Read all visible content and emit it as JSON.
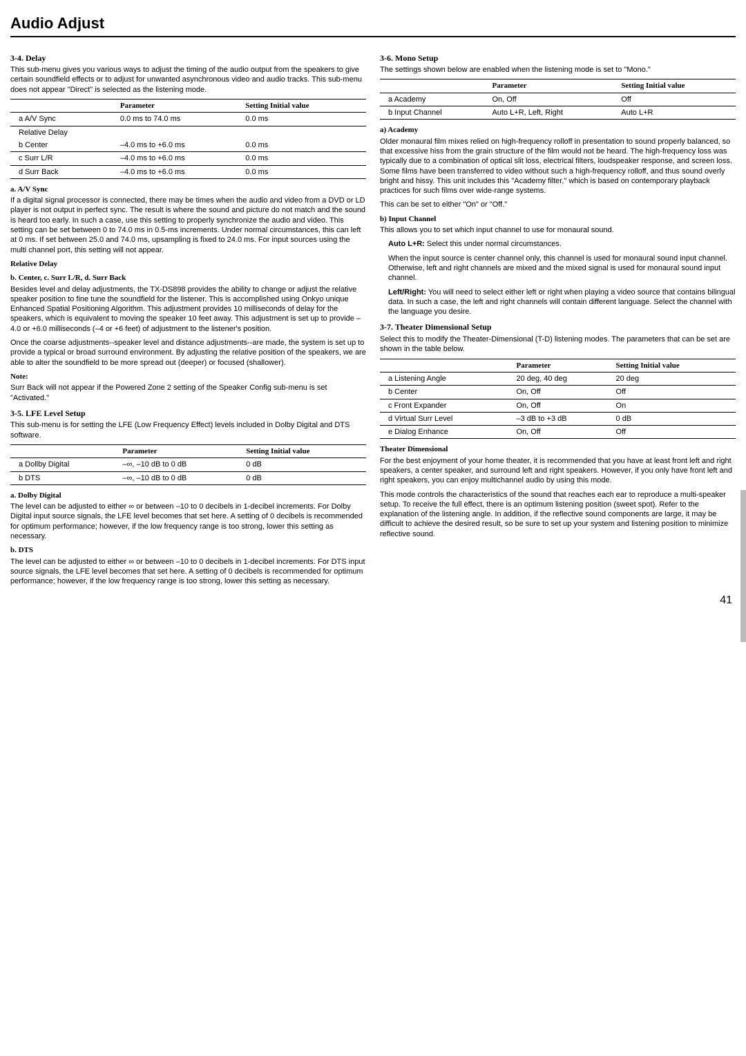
{
  "title": "Audio Adjust",
  "pageNumber": "41",
  "s34": {
    "heading": "3-4. Delay",
    "intro": "This sub-menu gives you various ways to adjust the timing of the audio output from the speakers to give certain soundfield effects or to adjust for unwanted asynchronous video and audio tracks. This sub-menu does not appear \"Direct\" is selected as the listening mode.",
    "th_param": "Parameter",
    "th_set": "Setting Initial value",
    "rows": [
      {
        "k": "a  A/V Sync",
        "p": "0.0 ms to 74.0 ms",
        "v": "0.0 ms"
      },
      {
        "k": "Relative Delay",
        "p": "",
        "v": ""
      },
      {
        "k": "b  Center",
        "p": "–4.0 ms to +6.0 ms",
        "v": "0.0 ms"
      },
      {
        "k": "c  Surr L/R",
        "p": "–4.0 ms to +6.0 ms",
        "v": "0.0 ms"
      },
      {
        "k": "d  Surr Back",
        "p": "–4.0 ms to +6.0 ms",
        "v": "0.0 ms"
      }
    ],
    "a_h": "a. A/V Sync",
    "a_t": "If a digital signal processor is connected, there may be times when the audio and video from a DVD or LD player is not output in perfect sync. The result is where the sound and picture do not match and the sound is heard too early. In such a case, use this setting to properly synchronize the audio and video. This setting can be set between 0 to 74.0 ms in 0.5-ms increments. Under normal circumstances, this can left at 0 ms. If set between 25.0 and 74.0 ms, upsampling is fixed to 24.0 ms. For input sources using the multi channel port, this setting will not appear.",
    "rel_h": "Relative Delay",
    "b_h": "b. Center, c. Surr L/R, d. Surr Back",
    "b_t": "Besides level and delay adjustments, the TX-DS898 provides the ability to change or adjust the relative speaker position to fine tune the soundfield for the listener. This is accomplished using Onkyo unique Enhanced Spatial Positioning Algorithm. This adjustment provides 10 milliseconds of delay for the speakers, which is equivalent to moving the speaker 10 feet away. This adjustment is set up to provide –4.0 or +6.0 milliseconds (–4 or +6 feet) of adjustment to the listener's position.",
    "b_t2": "Once the coarse adjustments--speaker level and distance adjustments--are made, the system is set up to provide a typical or broad surround environment. By adjusting the relative position of the speakers, we are able to alter the soundfield to be more spread out (deeper) or focused (shallower).",
    "note_h": "Note:",
    "note_t": "Surr Back will not appear if the Powered Zone 2 setting of the Speaker Config sub-menu is set \"Activated.\""
  },
  "s35": {
    "heading": "3-5. LFE Level Setup",
    "intro": "This sub-menu is for setting the LFE (Low Frequency Effect) levels included in Dolby Digital and DTS software.",
    "th_param": "Parameter",
    "th_set": "Setting Initial value",
    "rows": [
      {
        "k": "a  Dollby Digital",
        "p": "–∞, –10 dB to 0 dB",
        "v": "0 dB"
      },
      {
        "k": "b  DTS",
        "p": "–∞, –10 dB to 0 dB",
        "v": "0 dB"
      }
    ],
    "a_h": "a. Dolby Digital",
    "a_t": "The level can be adjusted to either ∞ or between –10 to 0 decibels in 1-decibel increments. For Dolby Digital input source signals, the LFE level becomes that set here. A setting of 0 decibels is recommended for optimum performance; however, if the low frequency range is too strong, lower this setting as necessary.",
    "b_h": "b. DTS",
    "b_t": "The level can be adjusted to either ∞ or between –10 to 0 decibels in 1-decibel increments. For DTS input source signals, the LFE level becomes that set here. A setting of 0 decibels is recommended for optimum performance; however, if the low frequency range is too strong, lower this setting as necessary."
  },
  "s36": {
    "heading": "3-6. Mono Setup",
    "intro": "The settings shown below are enabled when the listening mode is set to \"Mono.\"",
    "th_param": "Parameter",
    "th_set": "Setting Initial value",
    "rows": [
      {
        "k": "a  Academy",
        "p": "On, Off",
        "v": "Off"
      },
      {
        "k": "b  Input Channel",
        "p": "Auto L+R, Left, Right",
        "v": "Auto L+R"
      }
    ],
    "a_h": "a) Academy",
    "a_t": "Older monaural film mixes relied on high-frequency rolloff in presentation to sound properly balanced, so that excessive hiss from the grain structure of the film would not be heard. The high-frequency loss was typically due to a combination of optical slit loss, electrical filters, loudspeaker response, and screen loss. Some films have been transferred to video without such a high-frequency rolloff, and thus sound overly bright and hissy. This unit includes this \"Academy filter,\" which is based on contemporary playback practices for such films over wide-range systems.",
    "a_t2": "This can be set to either \"On\" or \"Off.\"",
    "b_h": "b) Input Channel",
    "b_t": "This allows you to set which input channel to use for monaural sound.",
    "auto_h": "Auto L+R:",
    "auto_t": " Select this under normal circumstances.",
    "auto_t2": "When the input source is center channel only, this channel is used for monaural sound input channel. Otherwise, left and right channels are mixed and the mixed signal is used for monaural sound input channel.",
    "lr_h": "Left/Right:",
    "lr_t": " You will need to select either left or right when playing a video source that contains bilingual data. In such a case, the left and right channels will contain different language. Select the channel with the language you desire."
  },
  "s37": {
    "heading": "3-7. Theater Dimensional Setup",
    "intro": "Select this to modify the Theater-Dimensional (T-D) listening modes. The parameters that can be set are shown in the table below.",
    "th_param": "Parameter",
    "th_set": "Setting Initial value",
    "rows": [
      {
        "k": "a  Listening Angle",
        "p": "20 deg, 40 deg",
        "v": "20 deg"
      },
      {
        "k": "b  Center",
        "p": "On, Off",
        "v": "Off"
      },
      {
        "k": "c  Front Expander",
        "p": "On, Off",
        "v": "On"
      },
      {
        "k": "d  Virtual Surr Level",
        "p": "–3 dB to +3 dB",
        "v": "0 dB"
      },
      {
        "k": "e  Dialog Enhance",
        "p": "On, Off",
        "v": "Off"
      }
    ],
    "td_h": "Theater Dimensional",
    "td_t": "For the best enjoyment of your home theater, it is recommended that you have at least front left and right speakers, a center speaker, and surround left and right speakers. However, if you only have front left and right speakers, you can enjoy multichannel audio by using this mode.",
    "td_t2": "This mode controls the characteristics of the sound that reaches each ear to reproduce a multi-speaker setup. To receive the full effect, there is an optimum listening position (sweet spot). Refer to the explanation of the listening angle. In addition, if the reflective sound components are large, it may be difficult to achieve the desired result, so be sure to set up your system and listening position to minimize reflective sound."
  }
}
